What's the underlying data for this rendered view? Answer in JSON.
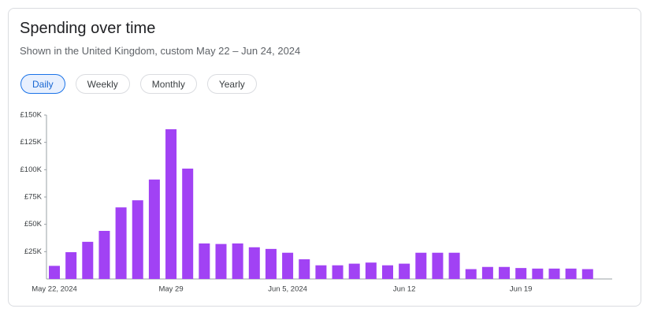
{
  "header": {
    "title": "Spending over time",
    "subtitle": "Shown in the United Kingdom, custom May 22 – Jun 24, 2024"
  },
  "tabs": {
    "items": [
      "Daily",
      "Weekly",
      "Monthly",
      "Yearly"
    ],
    "selected": "Daily"
  },
  "chart_data": {
    "type": "bar",
    "color": "#a142f4",
    "categories": [
      "May 22, 2024",
      null,
      null,
      null,
      null,
      null,
      null,
      "May 29",
      null,
      null,
      null,
      null,
      null,
      null,
      "Jun 5, 2024",
      null,
      null,
      null,
      null,
      null,
      null,
      "Jun 12",
      null,
      null,
      null,
      null,
      null,
      null,
      "Jun 19",
      null,
      null,
      null,
      null
    ],
    "values": [
      12000,
      24500,
      34000,
      44000,
      65500,
      72000,
      91000,
      137000,
      101000,
      32500,
      32000,
      32500,
      29000,
      27500,
      24000,
      18000,
      12500,
      12500,
      14000,
      15000,
      12500,
      14000,
      24000,
      24000,
      24000,
      9000,
      11000,
      11000,
      10000,
      9500,
      9500,
      9500,
      9000
    ],
    "ylim": [
      0,
      150000
    ],
    "yticks": [
      {
        "value": 25000,
        "label": "£25K"
      },
      {
        "value": 50000,
        "label": "£50K"
      },
      {
        "value": 75000,
        "label": "£75K"
      },
      {
        "value": 100000,
        "label": "£100K"
      },
      {
        "value": 125000,
        "label": "£125K"
      },
      {
        "value": 150000,
        "label": "£150K"
      }
    ],
    "grid": false
  }
}
